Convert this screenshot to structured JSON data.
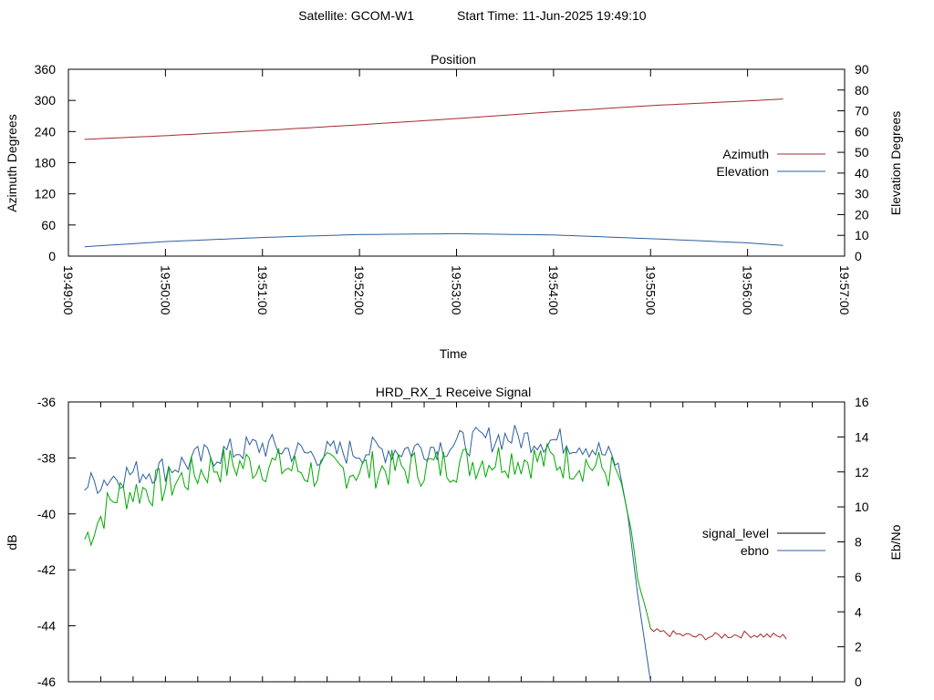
{
  "header": {
    "satellite_label": "Satellite: GCOM-W1",
    "start_time_label": "Start Time: 11-Jun-2025 19:49:10"
  },
  "colors": {
    "azimuth": "#a52a2a",
    "elevation": "#2c5f9e",
    "signal_level": "#a52a2a",
    "ebno": "#2c5f9e",
    "ebno_overlay": "#00aa00",
    "background": "#ffffff"
  },
  "chart_data": [
    {
      "type": "line",
      "title": "Position",
      "xlabel": "Time",
      "ylabel": "Azimuth Degrees",
      "y2label": "Elevation Degrees",
      "x_ticks": [
        "19:49:00",
        "19:50:00",
        "19:51:00",
        "19:52:00",
        "19:53:00",
        "19:54:00",
        "19:55:00",
        "19:56:00",
        "19:57:00"
      ],
      "xlim": [
        "19:49:00",
        "19:57:00"
      ],
      "ylim": [
        0,
        360
      ],
      "y_ticks": [
        0,
        60,
        120,
        180,
        240,
        300,
        360
      ],
      "y2lim": [
        0,
        90
      ],
      "y2_ticks": [
        0,
        10,
        20,
        30,
        40,
        50,
        60,
        70,
        80,
        90
      ],
      "legend_position": "right",
      "series": [
        {
          "name": "Azimuth",
          "axis": "y",
          "x": [
            "19:49:10",
            "19:50:00",
            "19:51:00",
            "19:52:00",
            "19:53:00",
            "19:54:00",
            "19:55:00",
            "19:56:00",
            "19:56:24"
          ],
          "values": [
            225,
            232,
            242,
            253,
            265,
            278,
            290,
            299,
            303
          ]
        },
        {
          "name": "Elevation",
          "axis": "y2",
          "x": [
            "19:49:10",
            "19:50:00",
            "19:51:00",
            "19:52:00",
            "19:53:00",
            "19:54:00",
            "19:55:00",
            "19:56:00",
            "19:56:24"
          ],
          "values": [
            4.5,
            7.0,
            9.0,
            10.4,
            10.8,
            10.2,
            8.4,
            6.4,
            5.0
          ]
        }
      ]
    },
    {
      "type": "line",
      "title": "HRD_RX_1 Receive Signal",
      "ylabel": "dB",
      "y2label": "Eb/No",
      "xlim": [
        "19:49:00",
        "19:57:00"
      ],
      "ylim": [
        -46,
        -36
      ],
      "y_ticks": [
        -46,
        -44,
        -42,
        -40,
        -38,
        -36
      ],
      "y2lim": [
        0,
        16
      ],
      "y2_ticks": [
        0,
        2,
        4,
        6,
        8,
        10,
        12,
        14,
        16
      ],
      "legend_position": "right",
      "series": [
        {
          "name": "signal_level",
          "axis": "y",
          "x": [
            "19:49:10",
            "19:49:30",
            "19:50:00",
            "19:50:30",
            "19:51:00",
            "19:51:30",
            "19:52:00",
            "19:52:30",
            "19:53:00",
            "19:53:30",
            "19:54:00",
            "19:54:20",
            "19:54:40",
            "19:54:46",
            "19:54:52",
            "19:55:00",
            "19:55:30",
            "19:56:00",
            "19:56:24"
          ],
          "values": [
            -40.9,
            -39.3,
            -39.0,
            -38.3,
            -38.2,
            -38.5,
            -38.4,
            -38.4,
            -38.2,
            -38.0,
            -38.1,
            -38.2,
            -38.6,
            -40.0,
            -42.3,
            -44.2,
            -44.4,
            -44.3,
            -44.4
          ]
        },
        {
          "name": "ebno",
          "axis": "y2",
          "x": [
            "19:49:10",
            "19:49:30",
            "19:50:00",
            "19:50:30",
            "19:51:00",
            "19:51:30",
            "19:52:00",
            "19:52:30",
            "19:53:00",
            "19:53:30",
            "19:54:00",
            "19:54:20",
            "19:54:40",
            "19:54:46",
            "19:54:52",
            "19:55:00"
          ],
          "values": [
            11.2,
            11.8,
            12.2,
            13.0,
            13.5,
            13.0,
            13.2,
            13.3,
            13.6,
            14.0,
            13.8,
            13.6,
            12.5,
            9.5,
            5.0,
            0
          ]
        }
      ]
    }
  ]
}
